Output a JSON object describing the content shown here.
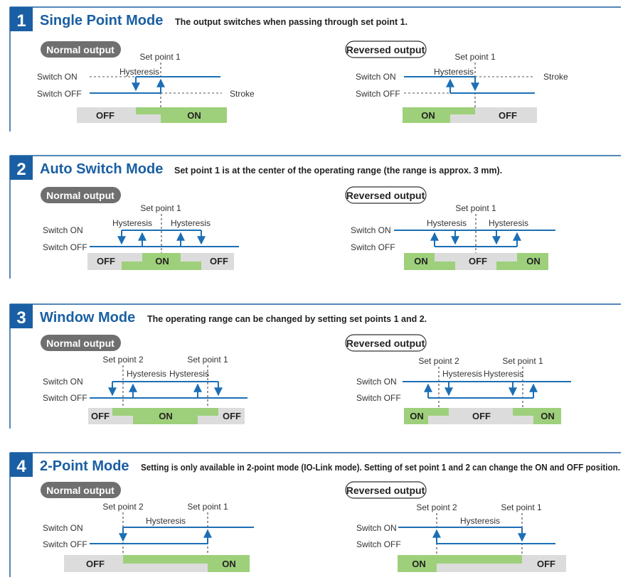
{
  "colors": {
    "blue": "#1a5fa3",
    "line_blue": "#1c6fb5",
    "green": "#9ed07b",
    "gray": "#dcdcdc",
    "pill_dark": "#6f6f6f"
  },
  "sections": [
    {
      "number": "1",
      "title": "Single Point Mode",
      "description": "The output switches when passing through set point 1.",
      "normal": {
        "badge": "Normal output",
        "switch_on": "Switch ON",
        "switch_off": "Switch OFF",
        "set_point_1": "Set point 1",
        "hysteresis": "Hysteresis",
        "stroke": "Stroke",
        "band": [
          "OFF",
          "ON"
        ]
      },
      "reversed": {
        "badge": "Reversed output",
        "switch_on": "Switch ON",
        "switch_off": "Switch OFF",
        "set_point_1": "Set point 1",
        "hysteresis": "Hysteresis",
        "stroke": "Stroke",
        "band": [
          "ON",
          "OFF"
        ]
      }
    },
    {
      "number": "2",
      "title": "Auto Switch Mode",
      "description": "Set point 1 is at the center of the operating range (the range is approx. 3 mm).",
      "normal": {
        "badge": "Normal output",
        "switch_on": "Switch ON",
        "switch_off": "Switch OFF",
        "set_point_1": "Set point 1",
        "hysteresis_left": "Hysteresis",
        "hysteresis_right": "Hysteresis",
        "band": [
          "OFF",
          "ON",
          "OFF"
        ]
      },
      "reversed": {
        "badge": "Reversed output",
        "switch_on": "Switch ON",
        "switch_off": "Switch OFF",
        "set_point_1": "Set point 1",
        "hysteresis_left": "Hysteresis",
        "hysteresis_right": "Hysteresis",
        "band": [
          "ON",
          "OFF",
          "ON"
        ]
      }
    },
    {
      "number": "3",
      "title": "Window Mode",
      "description": "The operating range can be changed by setting set points 1 and 2.",
      "normal": {
        "badge": "Normal output",
        "switch_on": "Switch ON",
        "switch_off": "Switch OFF",
        "set_point_2": "Set point 2",
        "set_point_1": "Set point 1",
        "hysteresis_left": "Hysteresis",
        "hysteresis_right": "Hysteresis",
        "band": [
          "OFF",
          "ON",
          "OFF"
        ]
      },
      "reversed": {
        "badge": "Reversed output",
        "switch_on": "Switch ON",
        "switch_off": "Switch OFF",
        "set_point_2": "Set point 2",
        "set_point_1": "Set point 1",
        "hysteresis_left": "Hysteresis",
        "hysteresis_right": "Hysteresis",
        "band": [
          "ON",
          "OFF",
          "ON"
        ]
      }
    },
    {
      "number": "4",
      "title": "2-Point Mode",
      "description": "Setting is only available in 2-point mode (IO-Link mode). Setting of set point 1 and 2 can change the ON and OFF position.",
      "normal": {
        "badge": "Normal output",
        "switch_on": "Switch ON",
        "switch_off": "Switch OFF",
        "set_point_2": "Set point 2",
        "set_point_1": "Set point 1",
        "hysteresis": "Hysteresis",
        "band": [
          "OFF",
          "ON"
        ]
      },
      "reversed": {
        "badge": "Reversed output",
        "switch_on": "Switch ON",
        "switch_off": "Switch OFF",
        "set_point_2": "Set point 2",
        "set_point_1": "Set point 1",
        "hysteresis": "Hysteresis",
        "band": [
          "ON",
          "OFF"
        ]
      }
    }
  ]
}
